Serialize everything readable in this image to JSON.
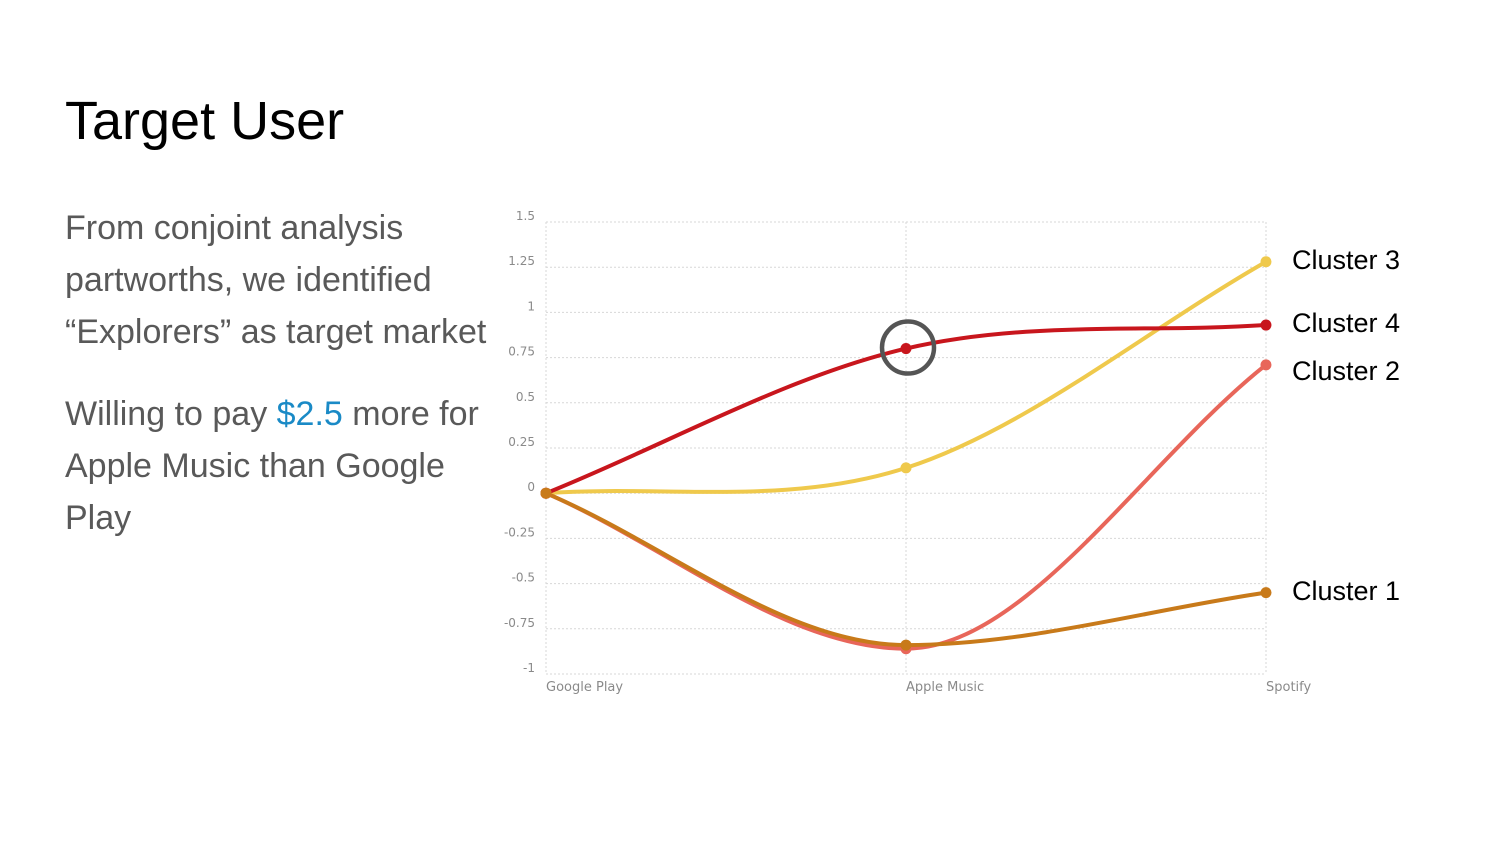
{
  "slide": {
    "title": "Target User",
    "paragraph1": "From conjoint analysis partworths, we identified “Explorers” as target market",
    "para2_pre": "Willing to pay ",
    "para2_highlight": "$2.5",
    "para2_post": " more for Apple Music than Google Play"
  },
  "colors": {
    "accent": "#1a8ac6",
    "highlight_ring": "#555555"
  },
  "chart_data": {
    "type": "line",
    "title": "",
    "xlabel": "",
    "ylabel": "",
    "categories": [
      "Google Play",
      "Apple Music",
      "Spotify"
    ],
    "ylim": [
      -1,
      1.5
    ],
    "yticks": [
      1.5,
      1.25,
      1,
      0.75,
      0.5,
      0.25,
      0,
      -0.25,
      -0.5,
      -0.75,
      -1
    ],
    "ytick_labels": [
      "1.5",
      "1.25",
      "1",
      "0.75",
      "0.5",
      "0.25",
      "0",
      "-0.25",
      "-0.5",
      "-0.75",
      "-1"
    ],
    "series": [
      {
        "name": "Cluster 3",
        "values": [
          0,
          0.14,
          1.28
        ],
        "color": "#efc94c"
      },
      {
        "name": "Cluster 4",
        "values": [
          0,
          0.8,
          0.93
        ],
        "color": "#c8161d"
      },
      {
        "name": "Cluster 2",
        "values": [
          0,
          -0.86,
          0.71
        ],
        "color": "#e8665a"
      },
      {
        "name": "Cluster 1",
        "values": [
          0,
          -0.84,
          -0.55
        ],
        "color": "#c87a1a"
      }
    ],
    "highlight": {
      "series": "Cluster 4",
      "category": "Apple Music"
    }
  }
}
